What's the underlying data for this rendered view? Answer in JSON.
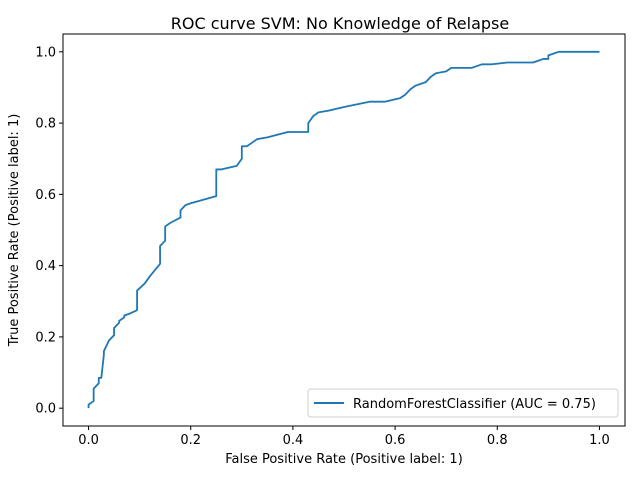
{
  "chart_data": {
    "type": "line",
    "title": "ROC curve SVM: No Knowledge of Relapse",
    "xlabel": "False Positive Rate (Positive label: 1)",
    "ylabel": "True Positive Rate (Positive label: 1)",
    "xlim": [
      -0.05,
      1.05
    ],
    "ylim": [
      -0.05,
      1.05
    ],
    "xticks": [
      0.0,
      0.2,
      0.4,
      0.6,
      0.8,
      1.0
    ],
    "yticks": [
      0.0,
      0.2,
      0.4,
      0.6,
      0.8,
      1.0
    ],
    "xtick_labels": [
      "0.0",
      "0.2",
      "0.4",
      "0.6",
      "0.8",
      "1.0"
    ],
    "ytick_labels": [
      "0.0",
      "0.2",
      "0.4",
      "0.6",
      "0.8",
      "1.0"
    ],
    "grid": false,
    "legend_position": "lower-right",
    "series": [
      {
        "name": "RandomForestClassifier (AUC = 0.75)",
        "color": "#1f77b4",
        "x": [
          0.0,
          0.0,
          0.01,
          0.01,
          0.02,
          0.02,
          0.025,
          0.03,
          0.03,
          0.04,
          0.05,
          0.05,
          0.06,
          0.06,
          0.07,
          0.07,
          0.08,
          0.095,
          0.095,
          0.11,
          0.12,
          0.14,
          0.14,
          0.15,
          0.15,
          0.16,
          0.18,
          0.18,
          0.19,
          0.2,
          0.25,
          0.25,
          0.26,
          0.29,
          0.3,
          0.3,
          0.31,
          0.32,
          0.33,
          0.35,
          0.39,
          0.43,
          0.43,
          0.44,
          0.45,
          0.47,
          0.5,
          0.55,
          0.58,
          0.61,
          0.62,
          0.63,
          0.64,
          0.66,
          0.67,
          0.68,
          0.7,
          0.71,
          0.75,
          0.76,
          0.77,
          0.79,
          0.82,
          0.87,
          0.88,
          0.89,
          0.9,
          0.9,
          0.91,
          0.92,
          1.0
        ],
        "y": [
          0.0,
          0.01,
          0.02,
          0.055,
          0.07,
          0.085,
          0.085,
          0.15,
          0.16,
          0.19,
          0.205,
          0.225,
          0.24,
          0.245,
          0.255,
          0.26,
          0.265,
          0.275,
          0.33,
          0.35,
          0.37,
          0.405,
          0.455,
          0.47,
          0.51,
          0.52,
          0.535,
          0.555,
          0.57,
          0.575,
          0.595,
          0.67,
          0.67,
          0.68,
          0.7,
          0.735,
          0.735,
          0.745,
          0.755,
          0.76,
          0.775,
          0.775,
          0.8,
          0.82,
          0.83,
          0.835,
          0.845,
          0.86,
          0.86,
          0.87,
          0.88,
          0.895,
          0.905,
          0.915,
          0.93,
          0.94,
          0.945,
          0.955,
          0.955,
          0.96,
          0.965,
          0.965,
          0.97,
          0.97,
          0.975,
          0.98,
          0.98,
          0.99,
          0.995,
          1.0,
          1.0
        ]
      }
    ]
  }
}
